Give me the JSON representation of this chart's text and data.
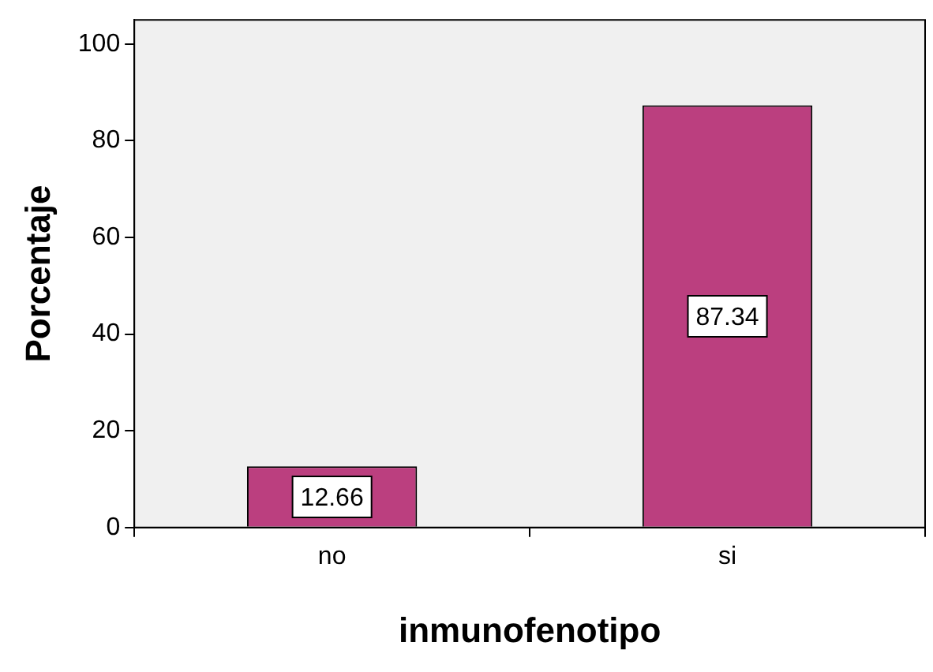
{
  "chart_data": {
    "type": "bar",
    "xlabel": "inmunofenotipo",
    "ylabel": "Porcentaje",
    "categories": [
      "no",
      "si"
    ],
    "values": [
      12.66,
      87.34
    ],
    "color": "#bb3f7f",
    "ylim": [
      0,
      105
    ],
    "yticks": [
      0,
      20,
      40,
      60,
      80,
      100
    ],
    "grid": false,
    "data_labels": true
  }
}
